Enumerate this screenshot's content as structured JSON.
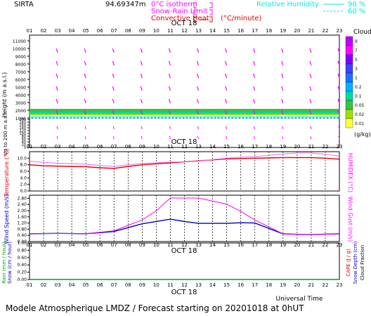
{
  "header": {
    "station": "SIRTA",
    "altitude_text": "94.69347m",
    "legend_isotherm": "0°C isotherm",
    "legend_snow_rain": "Snow-Rain Limit",
    "legend_convective": "Convective Heat.",
    "legend_unit": "(°C/minute)",
    "legend_humidity": "Relative Humidity",
    "humidity_90": "90 %",
    "humidity_60": "60 %"
  },
  "hours": [
    "01",
    "02",
    "03",
    "04",
    "05",
    "06",
    "07",
    "08",
    "09",
    "10",
    "11",
    "12",
    "13",
    "14",
    "15",
    "16",
    "17",
    "18",
    "19",
    "20",
    "21",
    "22",
    "23"
  ],
  "date_label": "OCT 18",
  "footer": {
    "xaxis_title": "Universal Time",
    "forecast": "Modele Atmospherique LMDZ / Forecast starting on 20201018 at 0hUT"
  },
  "colors": {
    "magenta": "#ff00ff",
    "red": "#e00000",
    "cyan": "#00e8e8",
    "blue": "#0000c0",
    "green": "#00a000",
    "pink": "#ff60ff"
  },
  "chart_data": [
    {
      "type": "heatmap",
      "panel": "clouds-wind",
      "ylabel": "Height (m a.s.l.)",
      "ylabel2": "Up to 200 m a.s.l.",
      "yticks_upper": [
        1000,
        2000,
        3000,
        4000,
        5000,
        6000,
        7000,
        8000,
        9000,
        10000,
        11000
      ],
      "yticks_lower": [
        0,
        20,
        40,
        60,
        80,
        100,
        120,
        140,
        160,
        180,
        200
      ],
      "colorbar_title": "Clouds",
      "colorbar_unit": "(g/kg)",
      "colorbar_levels": [
        "9",
        "7",
        "5",
        "3",
        "1",
        "0.2",
        "0.1",
        "0.05",
        "0.02",
        "0.01"
      ],
      "colorbar_colors": [
        "#c000ff",
        "#ff00ff",
        "#8000ff",
        "#4040ff",
        "#2070ff",
        "#00b0ff",
        "#00d8a0",
        "#40c040",
        "#a0e000",
        "#ffff40"
      ]
    },
    {
      "type": "line",
      "panel": "temperature",
      "ylabel": "Temperature (°C)",
      "ylabel2": "HUMIDEX (°C)",
      "ylim": [
        0,
        12
      ],
      "yticks": [
        "0.0",
        "2.0",
        "4.0",
        "6.0",
        "8.0",
        "10.0"
      ],
      "series": [
        {
          "name": "Temperature",
          "values": [
            8.0,
            7.7,
            7.6,
            7.5,
            7.4,
            7.1,
            6.9,
            7.5,
            8.0,
            8.3,
            8.6,
            8.9,
            9.2,
            9.5,
            9.8,
            9.9,
            10.0,
            10.1,
            10.2,
            10.2,
            10.2,
            10.0,
            9.7
          ]
        },
        {
          "name": "HUMIDEX",
          "values": [
            9.1,
            8.7,
            8.5,
            8.3,
            8.2,
            7.8,
            7.5,
            8.0,
            8.4,
            8.6,
            8.8,
            8.9,
            9.1,
            9.6,
            10.0,
            10.3,
            10.5,
            10.9,
            11.3,
            11.6,
            11.6,
            11.2,
            10.6
          ]
        }
      ]
    },
    {
      "type": "line",
      "panel": "wind",
      "ylabel": "Wind Speed (m/s)",
      "ylabel2": "Wind Gust (m/s)",
      "ylim": [
        0,
        3.0
      ],
      "yticks": [
        "0.00",
        "0.40",
        "0.80",
        "1.20",
        "1.60",
        "2.00",
        "2.40",
        "2.80"
      ],
      "series": [
        {
          "name": "Wind Speed",
          "values": [
            0.5,
            0.52,
            0.53,
            0.52,
            0.51,
            0.58,
            0.65,
            0.9,
            1.15,
            1.3,
            1.45,
            1.3,
            1.18,
            1.18,
            1.18,
            1.22,
            1.2,
            0.85,
            0.5,
            0.47,
            0.45,
            0.48,
            0.5
          ]
        },
        {
          "name": "Wind Gust",
          "values": [
            0.5,
            0.52,
            0.53,
            0.52,
            0.51,
            0.6,
            0.7,
            1.05,
            1.4,
            2.0,
            2.82,
            2.82,
            2.82,
            2.62,
            2.42,
            1.95,
            1.4,
            0.95,
            0.5,
            0.47,
            0.45,
            0.48,
            0.5
          ]
        }
      ]
    },
    {
      "type": "line",
      "panel": "precipitation",
      "ylabel": "Rain (mm / hour)",
      "ylabel2": "Snow (cm / hour)",
      "ylabel3": "CAPE (J / g)",
      "ylabel4": "Snow Depth (cm)",
      "ylabel5": "Cloud Fraction",
      "ylim": [
        0,
        1.0
      ],
      "yticks": [
        "0.00",
        "0.20",
        "0.40",
        "0.60",
        "0.80",
        "1.00"
      ],
      "series": [
        {
          "name": "Rain",
          "values": [
            0,
            0,
            0,
            0,
            0,
            0,
            0,
            0,
            0,
            0,
            0,
            0,
            0,
            0,
            0,
            0,
            0,
            0,
            0,
            0,
            0,
            0,
            0
          ]
        }
      ]
    }
  ]
}
